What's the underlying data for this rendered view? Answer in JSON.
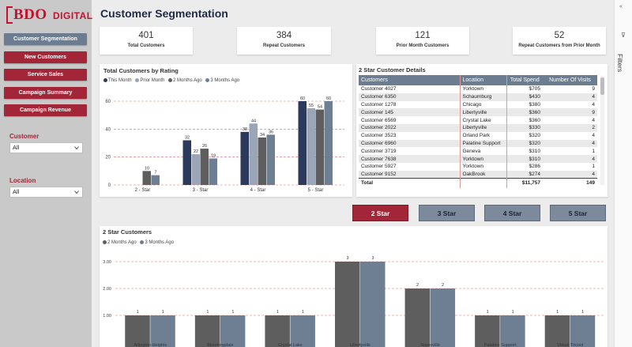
{
  "brand": {
    "name": "BDO",
    "suffix": "DIGITAL",
    "color": "#c8102e"
  },
  "page_title": "Customer Segmentation",
  "nav": [
    {
      "label": "Customer Segmentation",
      "active": true
    },
    {
      "label": "New Customers",
      "active": false
    },
    {
      "label": "Service Sales",
      "active": false
    },
    {
      "label": "Campaign Summary",
      "active": false
    },
    {
      "label": "Campaign Revenue",
      "active": false
    }
  ],
  "slicers": {
    "customer": {
      "label": "Customer",
      "value": "All"
    },
    "location": {
      "label": "Location",
      "value": "All"
    }
  },
  "filters_pane": {
    "label": "Filters",
    "collapse_glyph": "«",
    "funnel_glyph": "⊽"
  },
  "kpis": [
    {
      "value": "401",
      "label": "Total Customers"
    },
    {
      "value": "384",
      "label": "Repeat Customers"
    },
    {
      "value": "121",
      "label": "Prior Month Customers"
    },
    {
      "value": "52",
      "label": "Repeat Customers from Prior Month"
    }
  ],
  "rating_chart": {
    "title": "Total Customers by Rating",
    "legend": [
      "This Month",
      "Prior Month",
      "2 Months Ago",
      "3 Months Ago"
    ]
  },
  "details": {
    "title": "2 Star Customer Details",
    "columns": [
      "Customers",
      "Location",
      "Total Spend",
      "Number Of Visits"
    ],
    "rows": [
      [
        "Customer 4027",
        "Yorktown",
        "$705",
        "9"
      ],
      [
        "Customer 6350",
        "Schaumburg",
        "$430",
        "4"
      ],
      [
        "Customer 1278",
        "Chicago",
        "$380",
        "4"
      ],
      [
        "Customer 145",
        "Libertyville",
        "$360",
        "9"
      ],
      [
        "Customer 6569",
        "Crystal Lake",
        "$360",
        "4"
      ],
      [
        "Customer 2022",
        "Libertyville",
        "$330",
        "2"
      ],
      [
        "Customer 3523",
        "Orland Park",
        "$320",
        "4"
      ],
      [
        "Customer 6960",
        "Palatine Support",
        "$320",
        "4"
      ],
      [
        "Customer 3719",
        "Geneva",
        "$310",
        "1"
      ],
      [
        "Customer 7638",
        "Yorktown",
        "$310",
        "4"
      ],
      [
        "Customer 5927",
        "Yorktown",
        "$286",
        "1"
      ],
      [
        "Customer 9152",
        "OakBrook",
        "$274",
        "4"
      ]
    ],
    "total": {
      "label": "Total",
      "spend": "$11,757",
      "visits": "149"
    }
  },
  "rating_buttons": [
    {
      "label": "2 Star",
      "selected": true
    },
    {
      "label": "3 Star",
      "selected": false
    },
    {
      "label": "4 Star",
      "selected": false
    },
    {
      "label": "5 Star",
      "selected": false
    }
  ],
  "colors": {
    "this_month": "#2b3a5c",
    "prior_month": "#9aa5b8",
    "two_months_ago": "#5e5e5e",
    "three_months_ago": "#6e7f94",
    "accent_red": "#a32638",
    "slate": "#6d7d91"
  },
  "chart_data": [
    {
      "type": "bar",
      "title": "Total Customers by Rating",
      "categories": [
        "2 - Star",
        "3 - Star",
        "4 - Star",
        "5 - Star"
      ],
      "series": [
        {
          "name": "This Month",
          "values": [
            null,
            32,
            38,
            60
          ]
        },
        {
          "name": "Prior Month",
          "values": [
            null,
            22,
            44,
            55
          ]
        },
        {
          "name": "2 Months Ago",
          "values": [
            10,
            26,
            34,
            54
          ]
        },
        {
          "name": "3 Months Ago",
          "values": [
            7,
            19,
            36,
            60
          ]
        }
      ],
      "ylim": [
        0,
        60
      ],
      "yticks": [
        0,
        20,
        40,
        60
      ],
      "legend": "top-left"
    },
    {
      "type": "bar",
      "title": "2 Star Customers",
      "categories": [
        "Arlington Heights",
        "Bloomingdale",
        "Crystal Lake",
        "Libertyville",
        "Naperville",
        "Palatine Support",
        "Virtual Tricool"
      ],
      "series": [
        {
          "name": "2 Months Ago",
          "values": [
            1,
            1,
            1,
            3,
            2,
            1,
            1
          ]
        },
        {
          "name": "3 Months Ago",
          "values": [
            1,
            1,
            1,
            3,
            2,
            1,
            1
          ]
        }
      ],
      "ylim": [
        0,
        3
      ],
      "yticks": [
        "1.00",
        "2.00",
        "3.00"
      ],
      "legend": "top-left"
    }
  ]
}
